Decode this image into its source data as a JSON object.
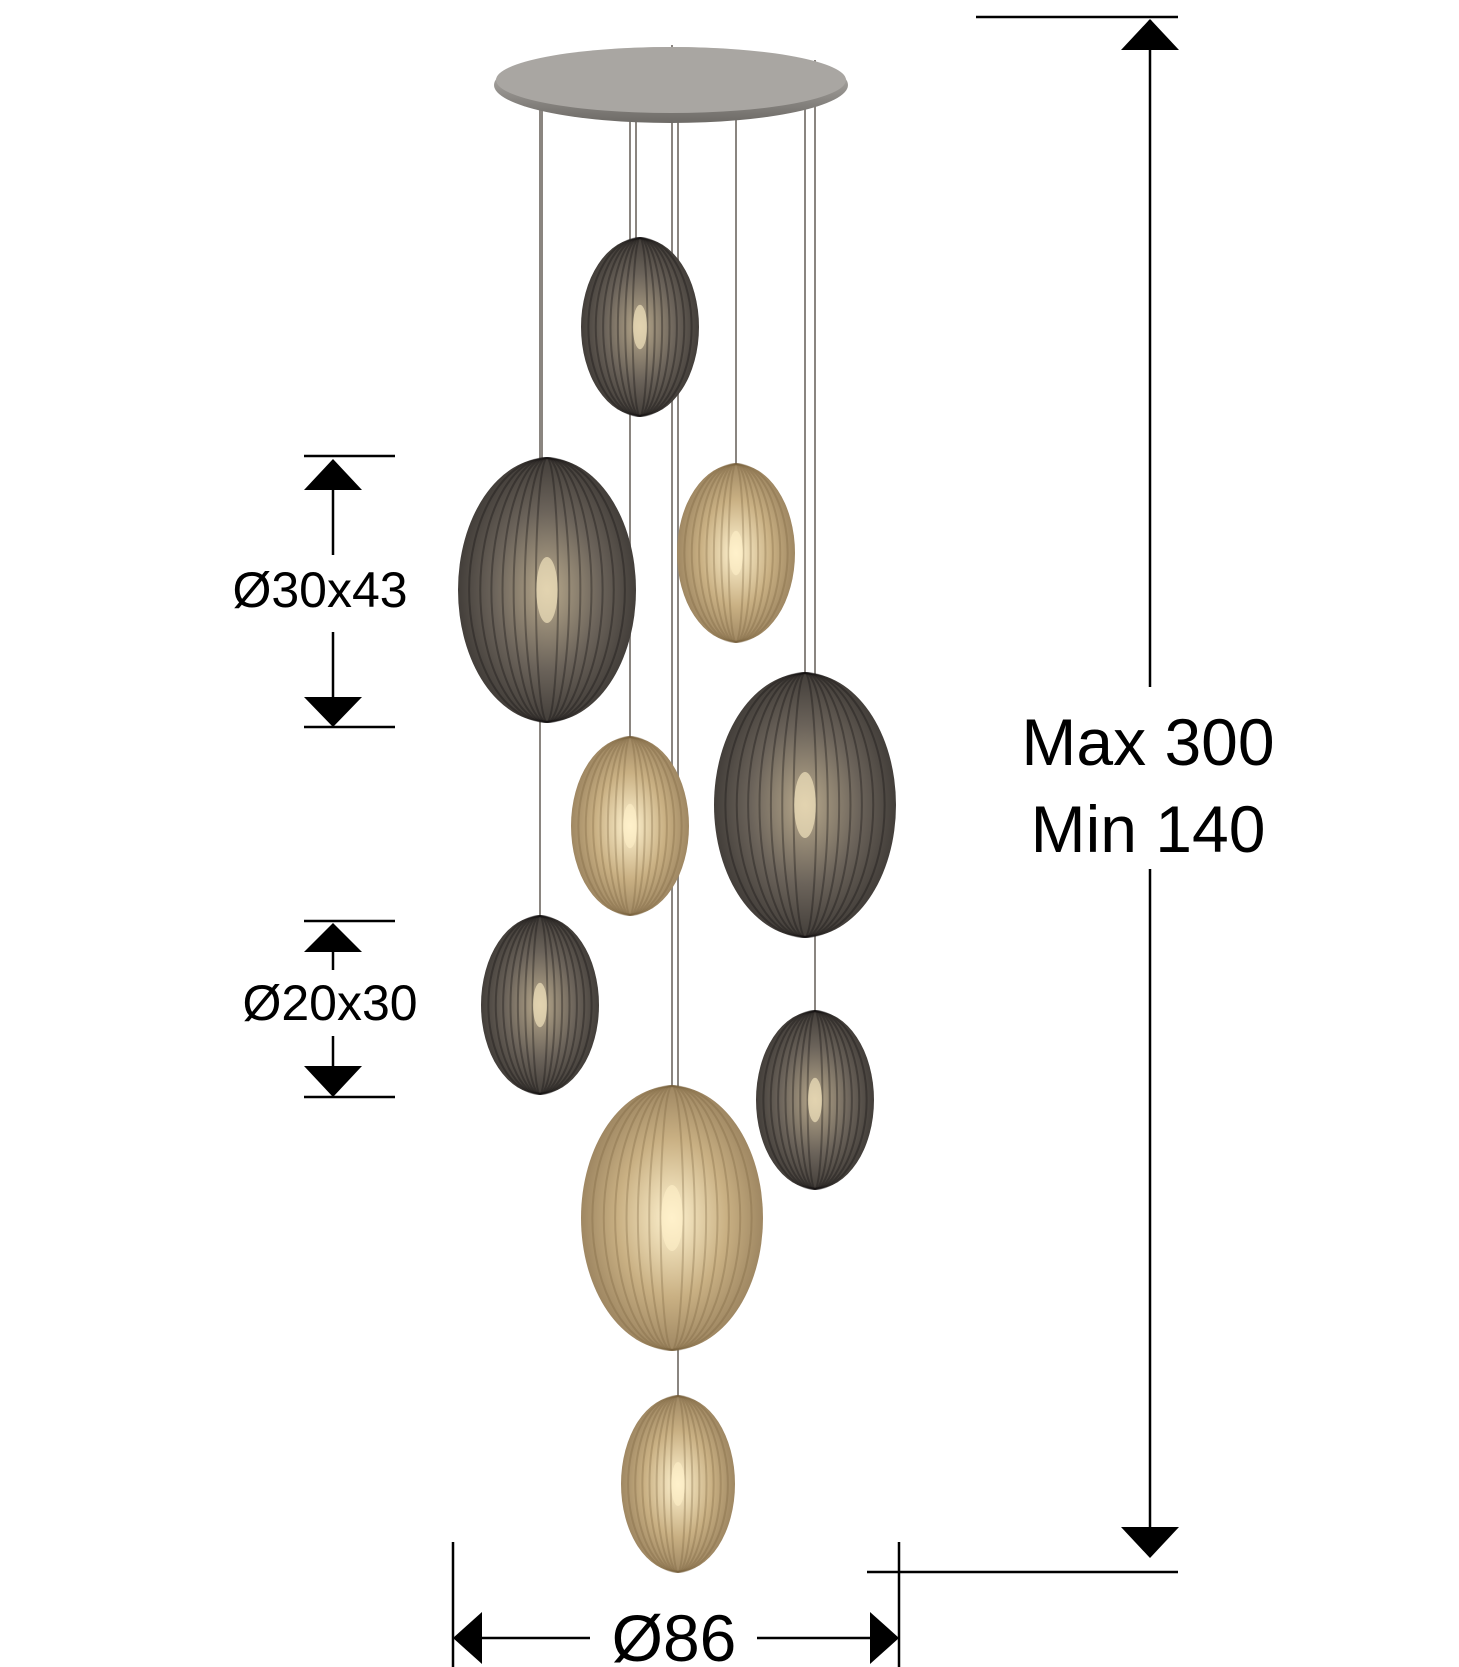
{
  "dimensions": {
    "height_max": "Max 300",
    "height_min": "Min 140",
    "large_shade": "Ø30x43",
    "small_shade": "Ø20x30",
    "canopy_diameter": "Ø86"
  },
  "colors": {
    "smoke": "#4a4540",
    "amber": "#b89a6a",
    "line": "#000000"
  }
}
